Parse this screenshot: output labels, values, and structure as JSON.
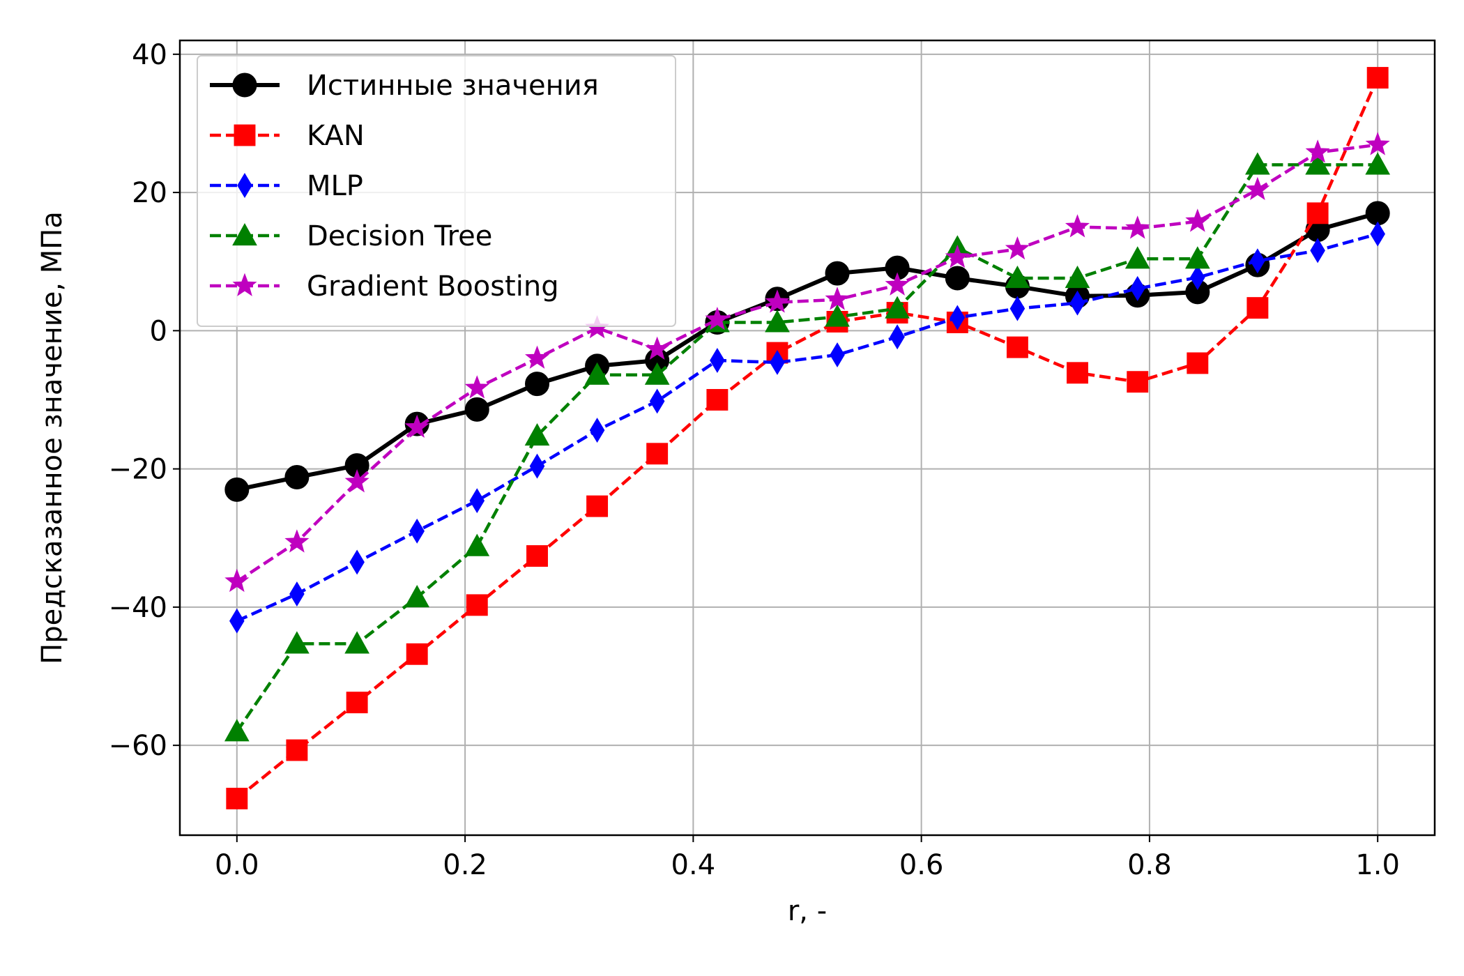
{
  "chart_data": {
    "type": "line",
    "title": "",
    "xlabel": "r, -",
    "ylabel": "Предсказанное значение, МПа",
    "xlim": [
      -0.05,
      1.05
    ],
    "ylim": [
      -73,
      42
    ],
    "xticks": [
      0.0,
      0.2,
      0.4,
      0.6,
      0.8,
      1.0
    ],
    "xtick_labels": [
      "0.0",
      "0.2",
      "0.4",
      "0.6",
      "0.8",
      "1.0"
    ],
    "yticks": [
      -60,
      -40,
      -20,
      0,
      20,
      40
    ],
    "ytick_labels": [
      "−60",
      "−40",
      "−20",
      "0",
      "20",
      "40"
    ],
    "grid": true,
    "legend_position": "top-left",
    "x": [
      0.0,
      0.0526,
      0.1053,
      0.1579,
      0.2105,
      0.2632,
      0.3158,
      0.3684,
      0.4211,
      0.4737,
      0.5263,
      0.5789,
      0.6316,
      0.6842,
      0.7368,
      0.7895,
      0.8421,
      0.8947,
      0.9474,
      1.0
    ],
    "series": [
      {
        "name": "Истинные значения",
        "color": "#000000",
        "marker": "circle",
        "linestyle": "solid",
        "values": [
          -23.0,
          -21.2,
          -19.5,
          -13.5,
          -11.4,
          -7.7,
          -5.1,
          -4.3,
          1.2,
          4.6,
          8.3,
          9.1,
          7.6,
          6.4,
          5.0,
          5.1,
          5.6,
          9.5,
          14.6,
          17.0
        ]
      },
      {
        "name": "KAN",
        "color": "#ff0000",
        "marker": "square",
        "linestyle": "dashed",
        "values": [
          -67.7,
          -60.7,
          -53.8,
          -46.8,
          -39.7,
          -32.6,
          -25.4,
          -17.8,
          -10.0,
          -3.2,
          1.3,
          2.6,
          1.2,
          -2.4,
          -6.1,
          -7.4,
          -4.7,
          3.3,
          17.0,
          36.6
        ]
      },
      {
        "name": "MLP",
        "color": "#0000ff",
        "marker": "thin-diamond",
        "linestyle": "dashed",
        "values": [
          -42.0,
          -38.1,
          -33.5,
          -29.0,
          -24.6,
          -19.6,
          -14.4,
          -10.2,
          -4.3,
          -4.6,
          -3.5,
          -0.9,
          1.9,
          3.2,
          4.0,
          6.1,
          7.7,
          10.1,
          11.6,
          14.0
        ]
      },
      {
        "name": "Decision Tree",
        "color": "#008000",
        "marker": "triangle",
        "linestyle": "dashed",
        "values": [
          -58.0,
          -45.3,
          -45.3,
          -38.6,
          -31.2,
          -15.2,
          -6.4,
          -6.4,
          1.2,
          1.2,
          2.0,
          3.2,
          12.0,
          7.6,
          7.6,
          10.4,
          10.4,
          24.0,
          24.0,
          24.0
        ]
      },
      {
        "name": "Gradient Boosting",
        "color": "#bf00bf",
        "marker": "star",
        "linestyle": "dashed",
        "values": [
          -36.3,
          -30.6,
          -21.9,
          -14.0,
          -8.3,
          -4.0,
          0.4,
          -2.7,
          1.6,
          4.1,
          4.5,
          6.6,
          10.6,
          11.8,
          15.0,
          14.8,
          15.8,
          20.4,
          25.8,
          26.9
        ]
      }
    ]
  }
}
